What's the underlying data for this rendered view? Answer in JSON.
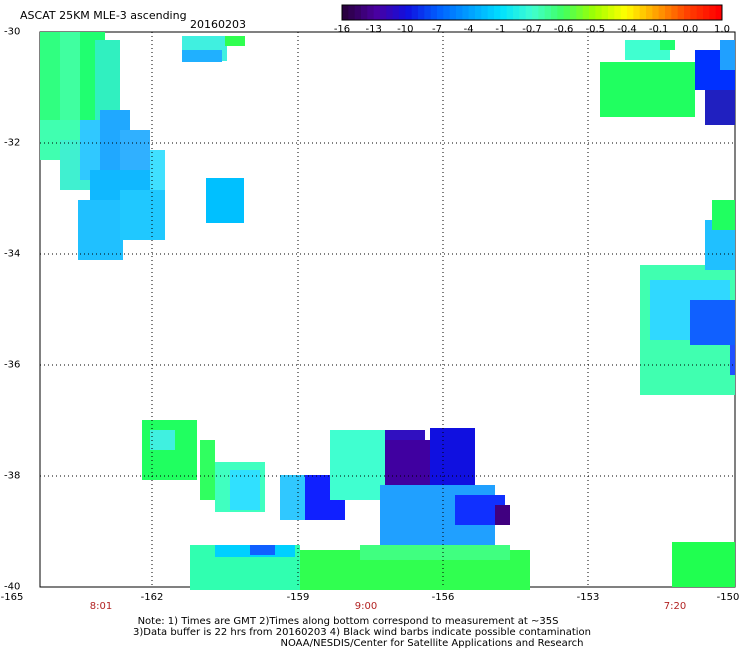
{
  "header": {
    "title": "ASCAT 25KM MLE-3 ascending",
    "date": "20160203"
  },
  "colorbar": {
    "tick_labels": [
      "-16",
      "-13",
      "-10",
      "-7",
      "-4",
      "-1",
      "-0.7",
      "-0.6",
      "-0.5",
      "-0.4",
      "-0.1",
      "0.0",
      "1.0"
    ],
    "colors": [
      "#2a0040",
      "#4a00a0",
      "#1010e0",
      "#0060ff",
      "#00a0ff",
      "#00e0ff",
      "#40ffd0",
      "#40ff60",
      "#a0ff00",
      "#ffff00",
      "#ffa000",
      "#ff4000",
      "#ff0000"
    ]
  },
  "map": {
    "lat_labels": [
      "-30",
      "-32",
      "-34",
      "-36",
      "-38",
      "-40"
    ],
    "lon_labels": [
      "-165",
      "-162",
      "-159",
      "-156",
      "-153",
      "-150"
    ],
    "lon_range": [
      -165,
      -150
    ],
    "lat_range": [
      -40,
      -30
    ],
    "times": [
      {
        "label": "8:01",
        "lon": -162.4
      },
      {
        "label": "9:00",
        "lon": -158.1
      },
      {
        "label": "7:20",
        "lon": -151.3
      }
    ]
  },
  "notes": {
    "line1": "Note: 1) Times are GMT 2)Times along bottom correspond to measurement at ~35S",
    "line2": "3)Data buffer is 22 hrs from 20160203 4) Black wind barbs indicate possible contamination",
    "line3": "NOAA/NESDIS/Center for Satellite Applications and Research"
  }
}
